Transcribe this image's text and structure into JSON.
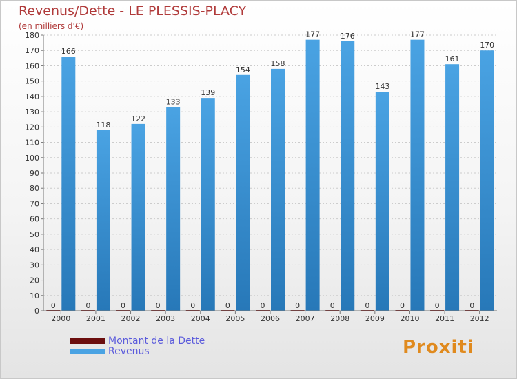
{
  "title": "Revenus/Dette - LE PLESSIS-PLACY",
  "subtitle": "(en milliers d'€)",
  "logo_text": "Proxiti",
  "colors": {
    "dette": "#6b0e0e",
    "revenus": "#4aa3e3",
    "revenus_dark": "#2778b8",
    "title": "#b03a3a",
    "legend_text": "#5b5bdc",
    "axis": "#777777",
    "grid": "#cccccc"
  },
  "chart_data": {
    "type": "bar",
    "categories": [
      "2000",
      "2001",
      "2002",
      "2003",
      "2004",
      "2005",
      "2006",
      "2007",
      "2008",
      "2009",
      "2010",
      "2011",
      "2012"
    ],
    "series": [
      {
        "name": "Montant de la Dette",
        "values": [
          0,
          0,
          0,
          0,
          0,
          0,
          0,
          0,
          0,
          0,
          0,
          0,
          0
        ]
      },
      {
        "name": "Revenus",
        "values": [
          166,
          118,
          122,
          133,
          139,
          154,
          158,
          177,
          176,
          143,
          177,
          161,
          170
        ]
      }
    ],
    "ylim": [
      0,
      180
    ],
    "ytick_step": 10,
    "grid": true,
    "legend_position": "bottom-left"
  }
}
